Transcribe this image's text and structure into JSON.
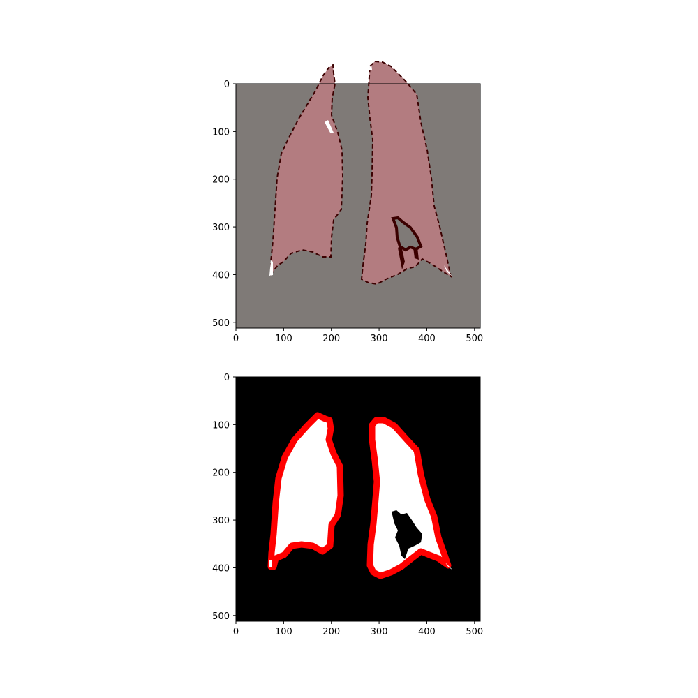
{
  "panels": [
    {
      "id": "overlay",
      "x_ticks": [
        "0",
        "100",
        "200",
        "300",
        "400",
        "500"
      ],
      "y_ticks": [
        "0",
        "100",
        "200",
        "300",
        "400",
        "500"
      ]
    },
    {
      "id": "mask",
      "x_ticks": [
        "0",
        "100",
        "200",
        "300",
        "400",
        "500"
      ],
      "y_ticks": [
        "0",
        "100",
        "200",
        "300",
        "400",
        "500"
      ]
    }
  ],
  "colors": {
    "overlay_background": "#7f7a77",
    "overlay_lung_fill": "#b37c80",
    "overlay_edge": "#3b0000",
    "mask_background": "#000000",
    "mask_lung_fill": "#ffffff",
    "mask_contour": "#ff0000"
  }
}
